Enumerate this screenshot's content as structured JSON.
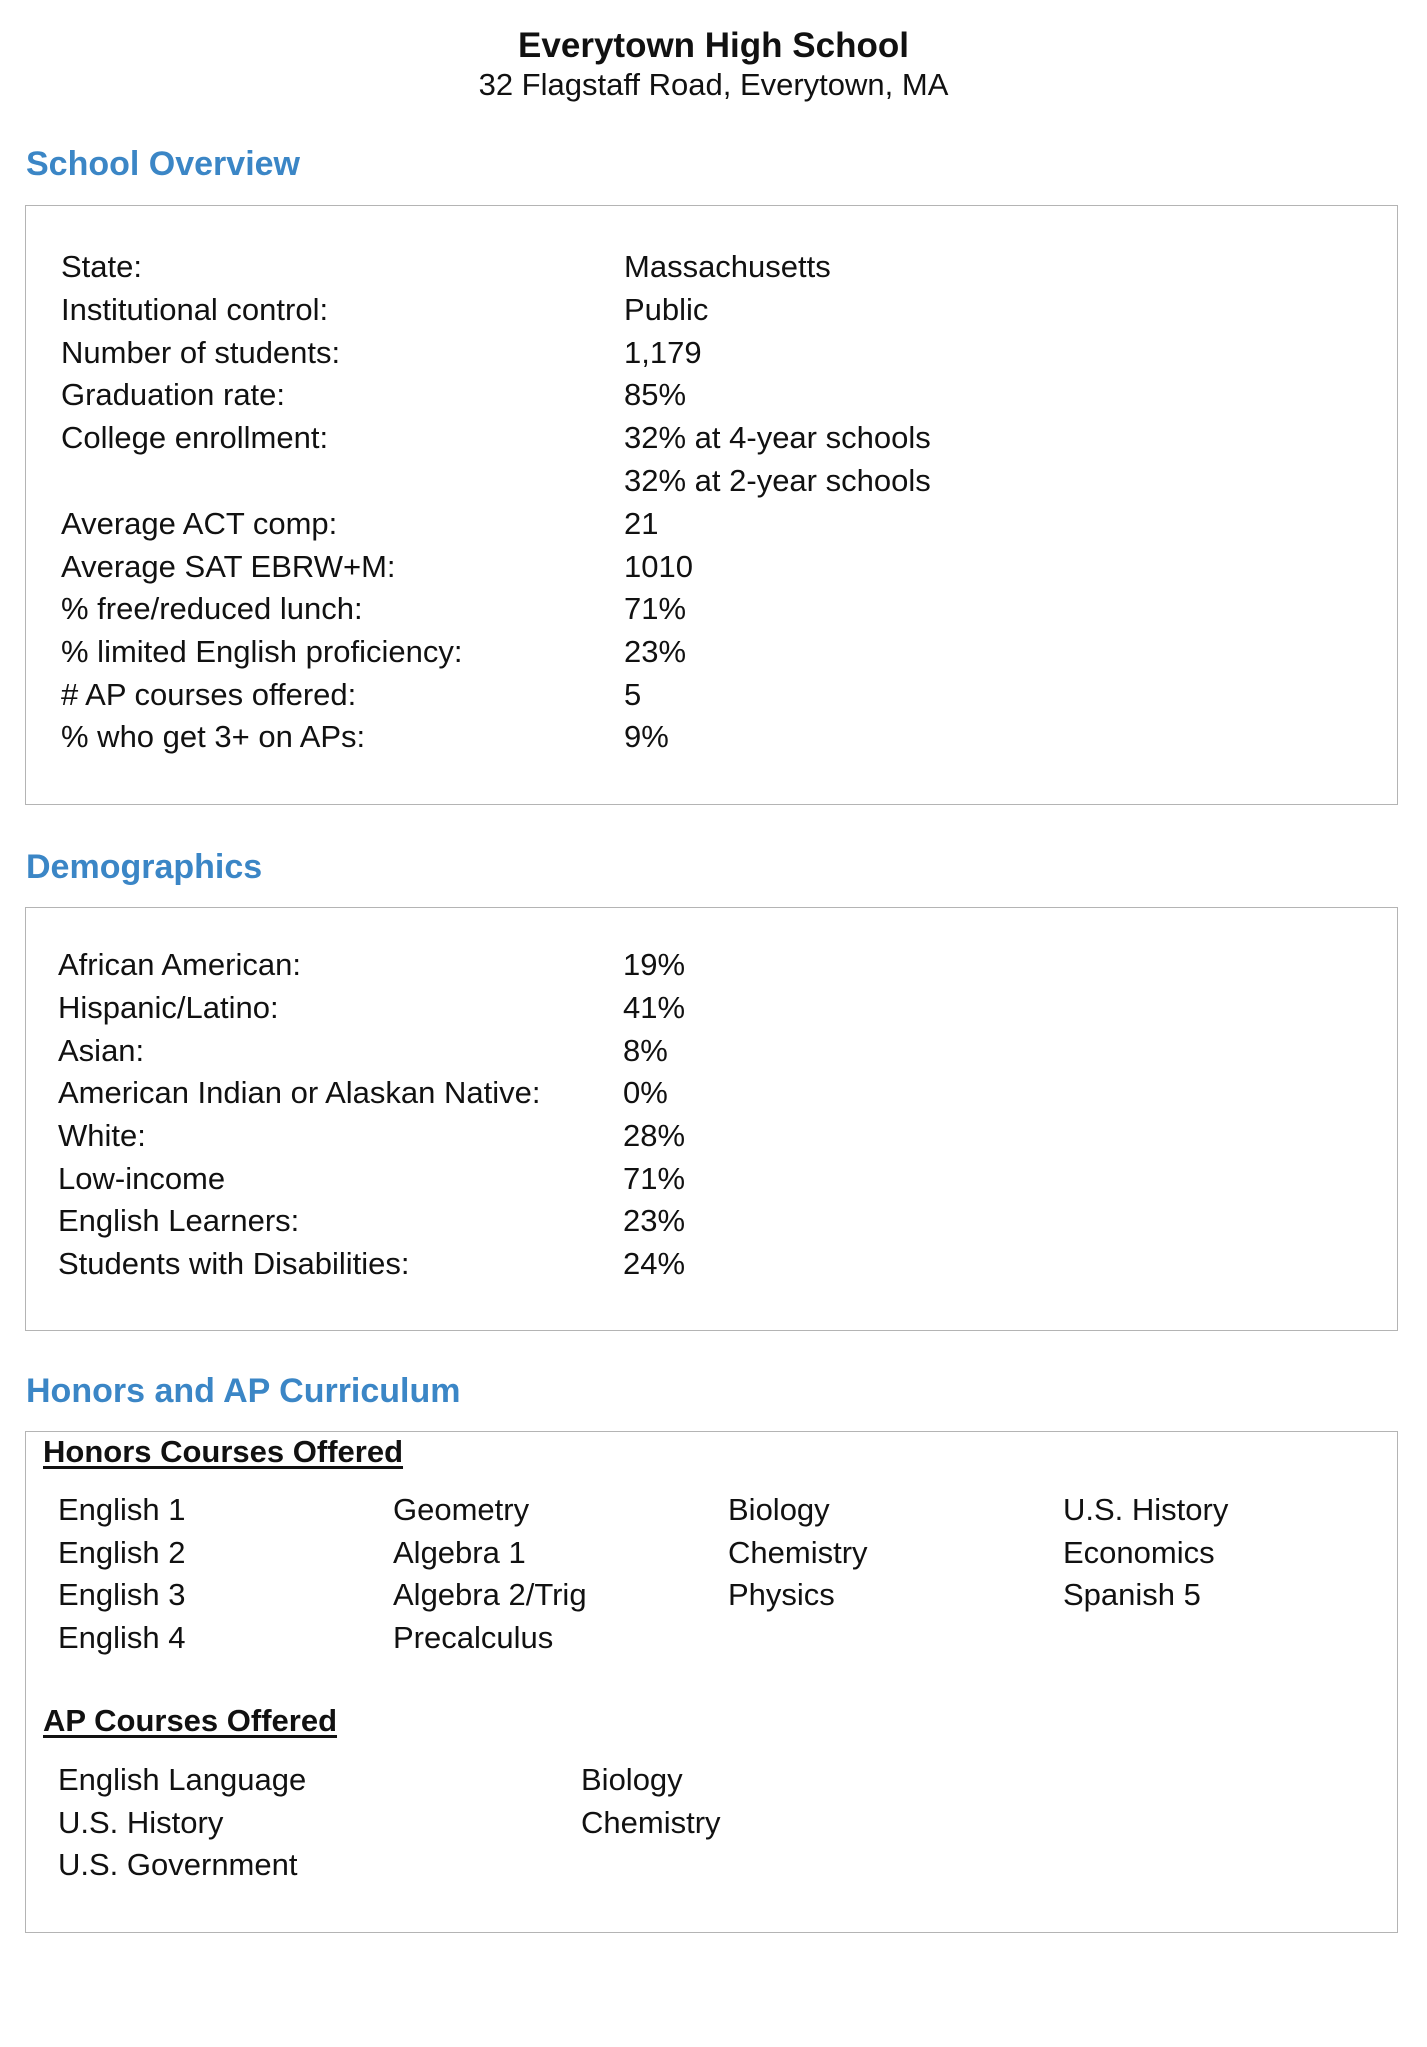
{
  "header": {
    "school_name": "Everytown High School",
    "address": "32 Flagstaff Road, Everytown, MA"
  },
  "overview": {
    "heading": "School Overview",
    "rows": [
      {
        "label": "State:",
        "value": "Massachusetts"
      },
      {
        "label": "Institutional control:",
        "value": "Public"
      },
      {
        "label": "Number of students:",
        "value": "1,179"
      },
      {
        "label": "Graduation rate:",
        "value": "85%"
      },
      {
        "label": "College enrollment:",
        "value": "32% at 4-year schools"
      },
      {
        "label": "",
        "value": "32% at 2-year schools"
      },
      {
        "label": "Average ACT comp:",
        "value": "21"
      },
      {
        "label": "Average SAT EBRW+M:",
        "value": "1010"
      },
      {
        "label": "% free/reduced lunch:",
        "value": "71%"
      },
      {
        "label": "% limited English proficiency:",
        "value": "23%"
      },
      {
        "label": "# AP courses offered:",
        "value": "5"
      },
      {
        "label": "% who get 3+ on APs:",
        "value": "9%"
      }
    ]
  },
  "demographics": {
    "heading": "Demographics",
    "rows": [
      {
        "label": "African American:",
        "value": "19%"
      },
      {
        "label": "Hispanic/Latino:",
        "value": "41%"
      },
      {
        "label": "Asian:",
        "value": "8%"
      },
      {
        "label": "American Indian or Alaskan Native:",
        "value": "0%"
      },
      {
        "label": "White:",
        "value": "28%"
      },
      {
        "label": "Low-income",
        "value": "71%"
      },
      {
        "label": "English Learners:",
        "value": "23%"
      },
      {
        "label": "Students with Disabilities:",
        "value": "24%"
      }
    ]
  },
  "curriculum": {
    "heading": "Honors and AP Curriculum",
    "honors": {
      "heading": "Honors Courses Offered",
      "columns": [
        [
          "English 1",
          "English 2",
          "English 3",
          "English 4"
        ],
        [
          "Geometry",
          "Algebra 1",
          "Algebra 2/Trig",
          "Precalculus"
        ],
        [
          "Biology",
          "Chemistry",
          "Physics"
        ],
        [
          "U.S. History",
          "Economics",
          "Spanish 5"
        ]
      ]
    },
    "ap": {
      "heading": "AP Courses Offered",
      "columns": [
        [
          "English Language",
          "U.S. History",
          "U.S. Government"
        ],
        [
          "Biology",
          "Chemistry"
        ]
      ]
    }
  },
  "colors": {
    "heading_blue": "#3b86c6",
    "box_border": "#b4b4b4",
    "text": "#111111"
  }
}
